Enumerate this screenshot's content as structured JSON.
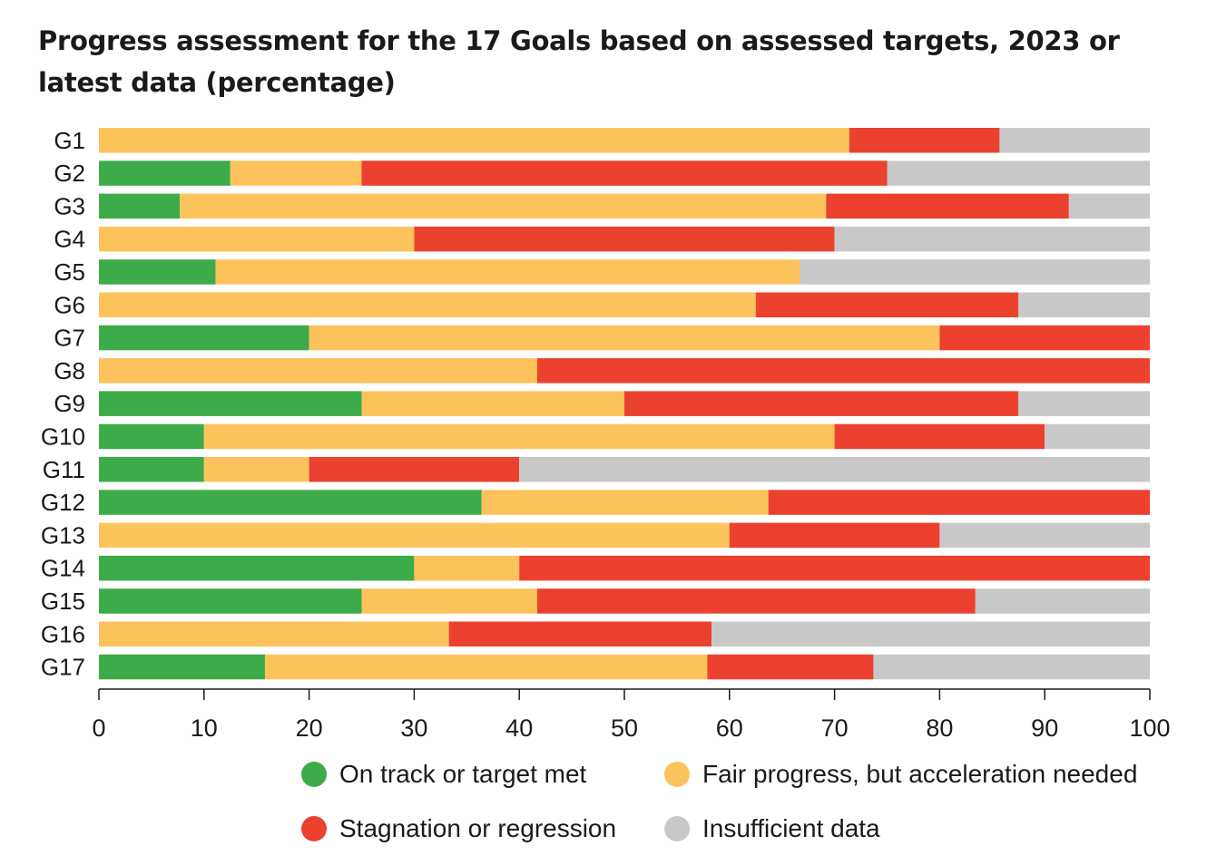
{
  "title": "Progress assessment for the 17 Goals based on assessed targets, 2023 or latest data (percentage)",
  "colors": {
    "on_track": "#3dab4a",
    "fair": "#fcc35c",
    "stagnation": "#ec412f",
    "insufficient": "#c8c8c9"
  },
  "legend": [
    {
      "key": "on_track",
      "label": "On track or target met"
    },
    {
      "key": "fair",
      "label": "Fair progress, but acceleration needed"
    },
    {
      "key": "stagnation",
      "label": "Stagnation or regression"
    },
    {
      "key": "insufficient",
      "label": "Insufficient data"
    }
  ],
  "chart_data": {
    "type": "bar",
    "orientation": "horizontal",
    "stacked": true,
    "title": "Progress assessment for the 17 Goals based on assessed targets, 2023 or latest data (percentage)",
    "categories": [
      "G1",
      "G2",
      "G3",
      "G4",
      "G5",
      "G6",
      "G7",
      "G8",
      "G9",
      "G10",
      "G11",
      "G12",
      "G13",
      "G14",
      "G15",
      "G16",
      "G17"
    ],
    "xlim": [
      0,
      100
    ],
    "xticks": [
      0,
      10,
      20,
      30,
      40,
      50,
      60,
      70,
      80,
      90,
      100
    ],
    "grid": false,
    "legend_position": "bottom",
    "series": [
      {
        "name": "On track or target met",
        "key": "on_track",
        "values": [
          0,
          12.5,
          7.7,
          0,
          11.1,
          0,
          20,
          0,
          25,
          10,
          10,
          36.4,
          0,
          30,
          25,
          0,
          15.8
        ]
      },
      {
        "name": "Fair progress, but acceleration needed",
        "key": "fair",
        "values": [
          71.4,
          12.5,
          61.5,
          30,
          55.6,
          62.5,
          60,
          41.7,
          25,
          60,
          10,
          27.3,
          60,
          10,
          16.7,
          33.3,
          42.1
        ]
      },
      {
        "name": "Stagnation or regression",
        "key": "stagnation",
        "values": [
          14.3,
          50,
          23.1,
          40,
          0,
          25,
          20,
          58.3,
          37.5,
          20,
          20,
          36.3,
          20,
          60,
          41.7,
          25,
          15.8
        ]
      },
      {
        "name": "Insufficient data",
        "key": "insufficient",
        "values": [
          14.3,
          25,
          7.7,
          30,
          33.3,
          12.5,
          0,
          0,
          12.5,
          10,
          60,
          0,
          20,
          0,
          16.6,
          41.7,
          26.3
        ]
      }
    ]
  }
}
